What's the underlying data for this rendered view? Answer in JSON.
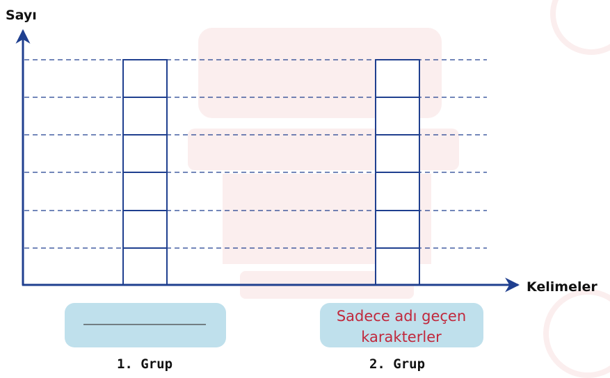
{
  "axes": {
    "y_label": "Sayı",
    "x_label": "Kelimeler"
  },
  "groups": [
    {
      "name": "1. Grup"
    },
    {
      "name": "2. Grup",
      "label_lines": [
        "Sadece adı geçen",
        "karakterler"
      ]
    }
  ]
}
